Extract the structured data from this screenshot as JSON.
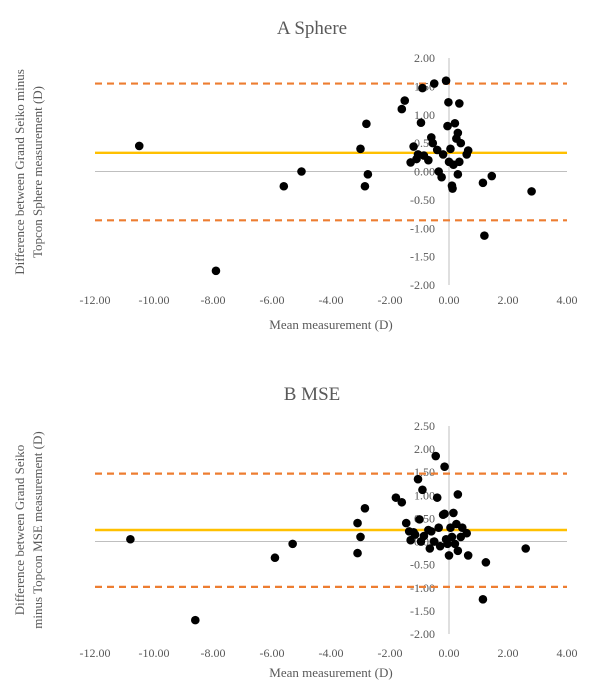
{
  "chart_data": [
    {
      "type": "scatter",
      "title": "A  Sphere",
      "xlabel": "Mean measurement (D)",
      "ylabel_lines": [
        "Difference between Grand Seiko minus",
        "Topcon Sphere measurement (D)"
      ],
      "xlim": [
        -12,
        4
      ],
      "ylim": [
        -2,
        2
      ],
      "xticks": [
        "-12.00",
        "-10.00",
        "-8.00",
        "-6.00",
        "-4.00",
        "-2.00",
        "0.00",
        "2.00",
        "4.00"
      ],
      "yticks": [
        "2.00",
        "1.50",
        "1.00",
        "0.50",
        "0.00",
        "-0.50",
        "-1.00",
        "-1.50",
        "-2.00"
      ],
      "mean_line": 0.33,
      "loa_upper": 1.55,
      "loa_lower": -0.86,
      "points": [
        [
          -10.5,
          0.45
        ],
        [
          -7.9,
          -1.75
        ],
        [
          -5.6,
          -0.26
        ],
        [
          -5.0,
          0.0
        ],
        [
          -3.0,
          0.4
        ],
        [
          -2.85,
          -0.26
        ],
        [
          -2.8,
          0.84
        ],
        [
          -2.75,
          -0.05
        ],
        [
          -1.6,
          1.1
        ],
        [
          -1.5,
          1.25
        ],
        [
          -1.3,
          0.16
        ],
        [
          -1.2,
          0.44
        ],
        [
          -1.1,
          0.22
        ],
        [
          -1.05,
          0.3
        ],
        [
          -0.95,
          0.86
        ],
        [
          -0.9,
          1.47
        ],
        [
          -0.85,
          0.28
        ],
        [
          -0.7,
          0.2
        ],
        [
          -0.6,
          0.6
        ],
        [
          -0.55,
          0.5
        ],
        [
          -0.5,
          1.55
        ],
        [
          -0.4,
          0.38
        ],
        [
          -0.35,
          0.0
        ],
        [
          -0.25,
          -0.1
        ],
        [
          -0.2,
          0.3
        ],
        [
          -0.1,
          1.6
        ],
        [
          -0.05,
          0.8
        ],
        [
          -0.02,
          1.22
        ],
        [
          0.0,
          0.17
        ],
        [
          0.05,
          0.4
        ],
        [
          0.1,
          -0.25
        ],
        [
          0.12,
          -0.3
        ],
        [
          0.15,
          0.12
        ],
        [
          0.2,
          0.85
        ],
        [
          0.25,
          0.58
        ],
        [
          0.3,
          -0.05
        ],
        [
          0.3,
          0.68
        ],
        [
          0.35,
          1.2
        ],
        [
          0.35,
          0.17
        ],
        [
          0.4,
          0.5
        ],
        [
          0.6,
          0.3
        ],
        [
          0.65,
          0.37
        ],
        [
          1.15,
          -0.2
        ],
        [
          1.2,
          -1.13
        ],
        [
          1.45,
          -0.08
        ],
        [
          2.8,
          -0.35
        ]
      ]
    },
    {
      "type": "scatter",
      "title": "B  MSE",
      "xlabel": "Mean measurement (D)",
      "ylabel_lines": [
        "Difference between Grand Seiko",
        "minus Topcon MSE measurement (D)"
      ],
      "xlim": [
        -12,
        4
      ],
      "ylim": [
        -2,
        2.5
      ],
      "xticks": [
        "-12.00",
        "-10.00",
        "-8.00",
        "-6.00",
        "-4.00",
        "-2.00",
        "0.00",
        "2.00",
        "4.00"
      ],
      "yticks": [
        "2.50",
        "2.00",
        "1.50",
        "1.00",
        "0.50",
        "0.00",
        "-0.50",
        "-1.00",
        "-1.50",
        "-2.00"
      ],
      "mean_line": 0.25,
      "loa_upper": 1.47,
      "loa_lower": -0.98,
      "points": [
        [
          -10.8,
          0.05
        ],
        [
          -8.6,
          -1.7
        ],
        [
          -5.9,
          -0.35
        ],
        [
          -5.3,
          -0.05
        ],
        [
          -3.1,
          0.4
        ],
        [
          -3.1,
          -0.25
        ],
        [
          -3.0,
          0.1
        ],
        [
          -2.85,
          0.72
        ],
        [
          -1.8,
          0.95
        ],
        [
          -1.6,
          0.85
        ],
        [
          -1.45,
          0.4
        ],
        [
          -1.35,
          0.22
        ],
        [
          -1.3,
          0.03
        ],
        [
          -1.2,
          0.2
        ],
        [
          -1.15,
          0.15
        ],
        [
          -1.05,
          1.35
        ],
        [
          -1.0,
          0.48
        ],
        [
          -0.95,
          0.0
        ],
        [
          -0.9,
          1.12
        ],
        [
          -0.85,
          0.12
        ],
        [
          -0.7,
          0.25
        ],
        [
          -0.65,
          -0.15
        ],
        [
          -0.6,
          0.22
        ],
        [
          -0.5,
          0.0
        ],
        [
          -0.45,
          1.85
        ],
        [
          -0.4,
          0.95
        ],
        [
          -0.35,
          0.3
        ],
        [
          -0.3,
          -0.1
        ],
        [
          -0.2,
          0.58
        ],
        [
          -0.15,
          1.62
        ],
        [
          -0.15,
          0.6
        ],
        [
          -0.1,
          0.05
        ],
        [
          -0.05,
          -0.05
        ],
        [
          0.0,
          -0.3
        ],
        [
          0.05,
          0.3
        ],
        [
          0.1,
          0.1
        ],
        [
          0.15,
          0.62
        ],
        [
          0.2,
          -0.05
        ],
        [
          0.25,
          0.38
        ],
        [
          0.3,
          -0.2
        ],
        [
          0.3,
          1.02
        ],
        [
          0.4,
          0.1
        ],
        [
          0.45,
          0.3
        ],
        [
          0.6,
          0.18
        ],
        [
          0.65,
          -0.3
        ],
        [
          1.15,
          -1.25
        ],
        [
          1.25,
          -0.45
        ],
        [
          2.6,
          -0.15
        ]
      ]
    }
  ]
}
